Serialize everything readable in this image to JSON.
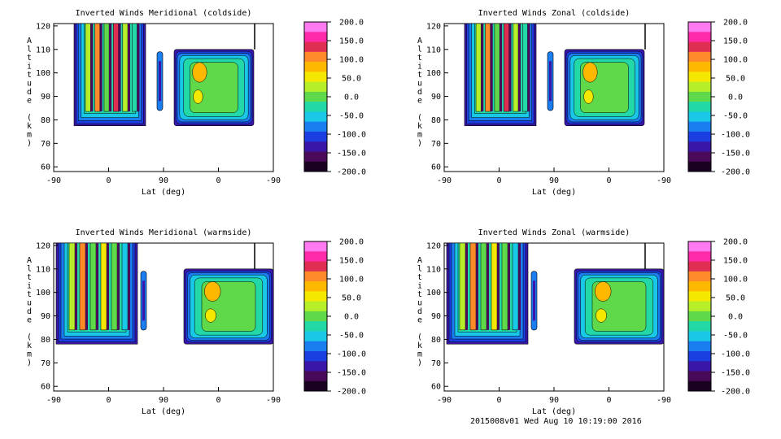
{
  "footer": "2015008v01 Wed Aug 10 10:19:00 2016",
  "colorbar": {
    "ticks": [
      "200.0",
      "150.0",
      "100.0",
      "50.0",
      "0.0",
      "-50.0",
      "-100.0",
      "-150.0",
      "-200.0"
    ],
    "colors": [
      "#ff7af0",
      "#ff2aa8",
      "#e02e52",
      "#ff8a2a",
      "#ffb800",
      "#f5e800",
      "#b6ef2a",
      "#5fd84a",
      "#22d8a6",
      "#18c8e6",
      "#1a7ef0",
      "#1a3ee0",
      "#3a16a8",
      "#4a0a5a",
      "#1a0022"
    ]
  },
  "chart_data": [
    {
      "type": "heatmap",
      "title": "Inverted Winds Meridional (coldside)",
      "xlabel": "Lat (deg)",
      "ylabel": "Altitude (km)",
      "xticks": [
        "-90",
        "0",
        "90",
        "0",
        "-90"
      ],
      "yticks": [
        "120",
        "110",
        "100",
        "90",
        "80",
        "70",
        "60"
      ],
      "ylim": [
        58,
        121
      ],
      "zlim": [
        -200,
        200
      ],
      "colorbar_ticks": [
        "200.0",
        "150.0",
        "100.0",
        "50.0",
        "0.0",
        "-50.0",
        "-100.0",
        "-150.0",
        "-200.0"
      ]
    },
    {
      "type": "heatmap",
      "title": "Inverted Winds Zonal (coldside)",
      "xlabel": "Lat (deg)",
      "ylabel": "Altitude (km)",
      "xticks": [
        "-90",
        "0",
        "90",
        "0",
        "-90"
      ],
      "yticks": [
        "120",
        "110",
        "100",
        "90",
        "80",
        "70",
        "60"
      ],
      "ylim": [
        58,
        121
      ],
      "zlim": [
        -200,
        200
      ],
      "colorbar_ticks": [
        "200.0",
        "150.0",
        "100.0",
        "50.0",
        "0.0",
        "-50.0",
        "-100.0",
        "-150.0",
        "-200.0"
      ]
    },
    {
      "type": "heatmap",
      "title": "Inverted Winds Meridional (warmside)",
      "xlabel": "Lat (deg)",
      "ylabel": "Altitude (km)",
      "xticks": [
        "-90",
        "0",
        "90",
        "0",
        "-90"
      ],
      "yticks": [
        "120",
        "110",
        "100",
        "90",
        "80",
        "70",
        "60"
      ],
      "ylim": [
        58,
        121
      ],
      "zlim": [
        -200,
        200
      ],
      "colorbar_ticks": [
        "200.0",
        "150.0",
        "100.0",
        "50.0",
        "0.0",
        "-50.0",
        "-100.0",
        "-150.0",
        "-200.0"
      ]
    },
    {
      "type": "heatmap",
      "title": "Inverted Winds Zonal (warmside)",
      "xlabel": "Lat (deg)",
      "ylabel": "Altitude (km)",
      "xticks": [
        "-90",
        "0",
        "90",
        "0",
        "-90"
      ],
      "yticks": [
        "120",
        "110",
        "100",
        "90",
        "80",
        "70",
        "60"
      ],
      "ylim": [
        58,
        121
      ],
      "zlim": [
        -200,
        200
      ],
      "colorbar_ticks": [
        "200.0",
        "150.0",
        "100.0",
        "50.0",
        "0.0",
        "-50.0",
        "-100.0",
        "-150.0",
        "-200.0"
      ]
    }
  ]
}
